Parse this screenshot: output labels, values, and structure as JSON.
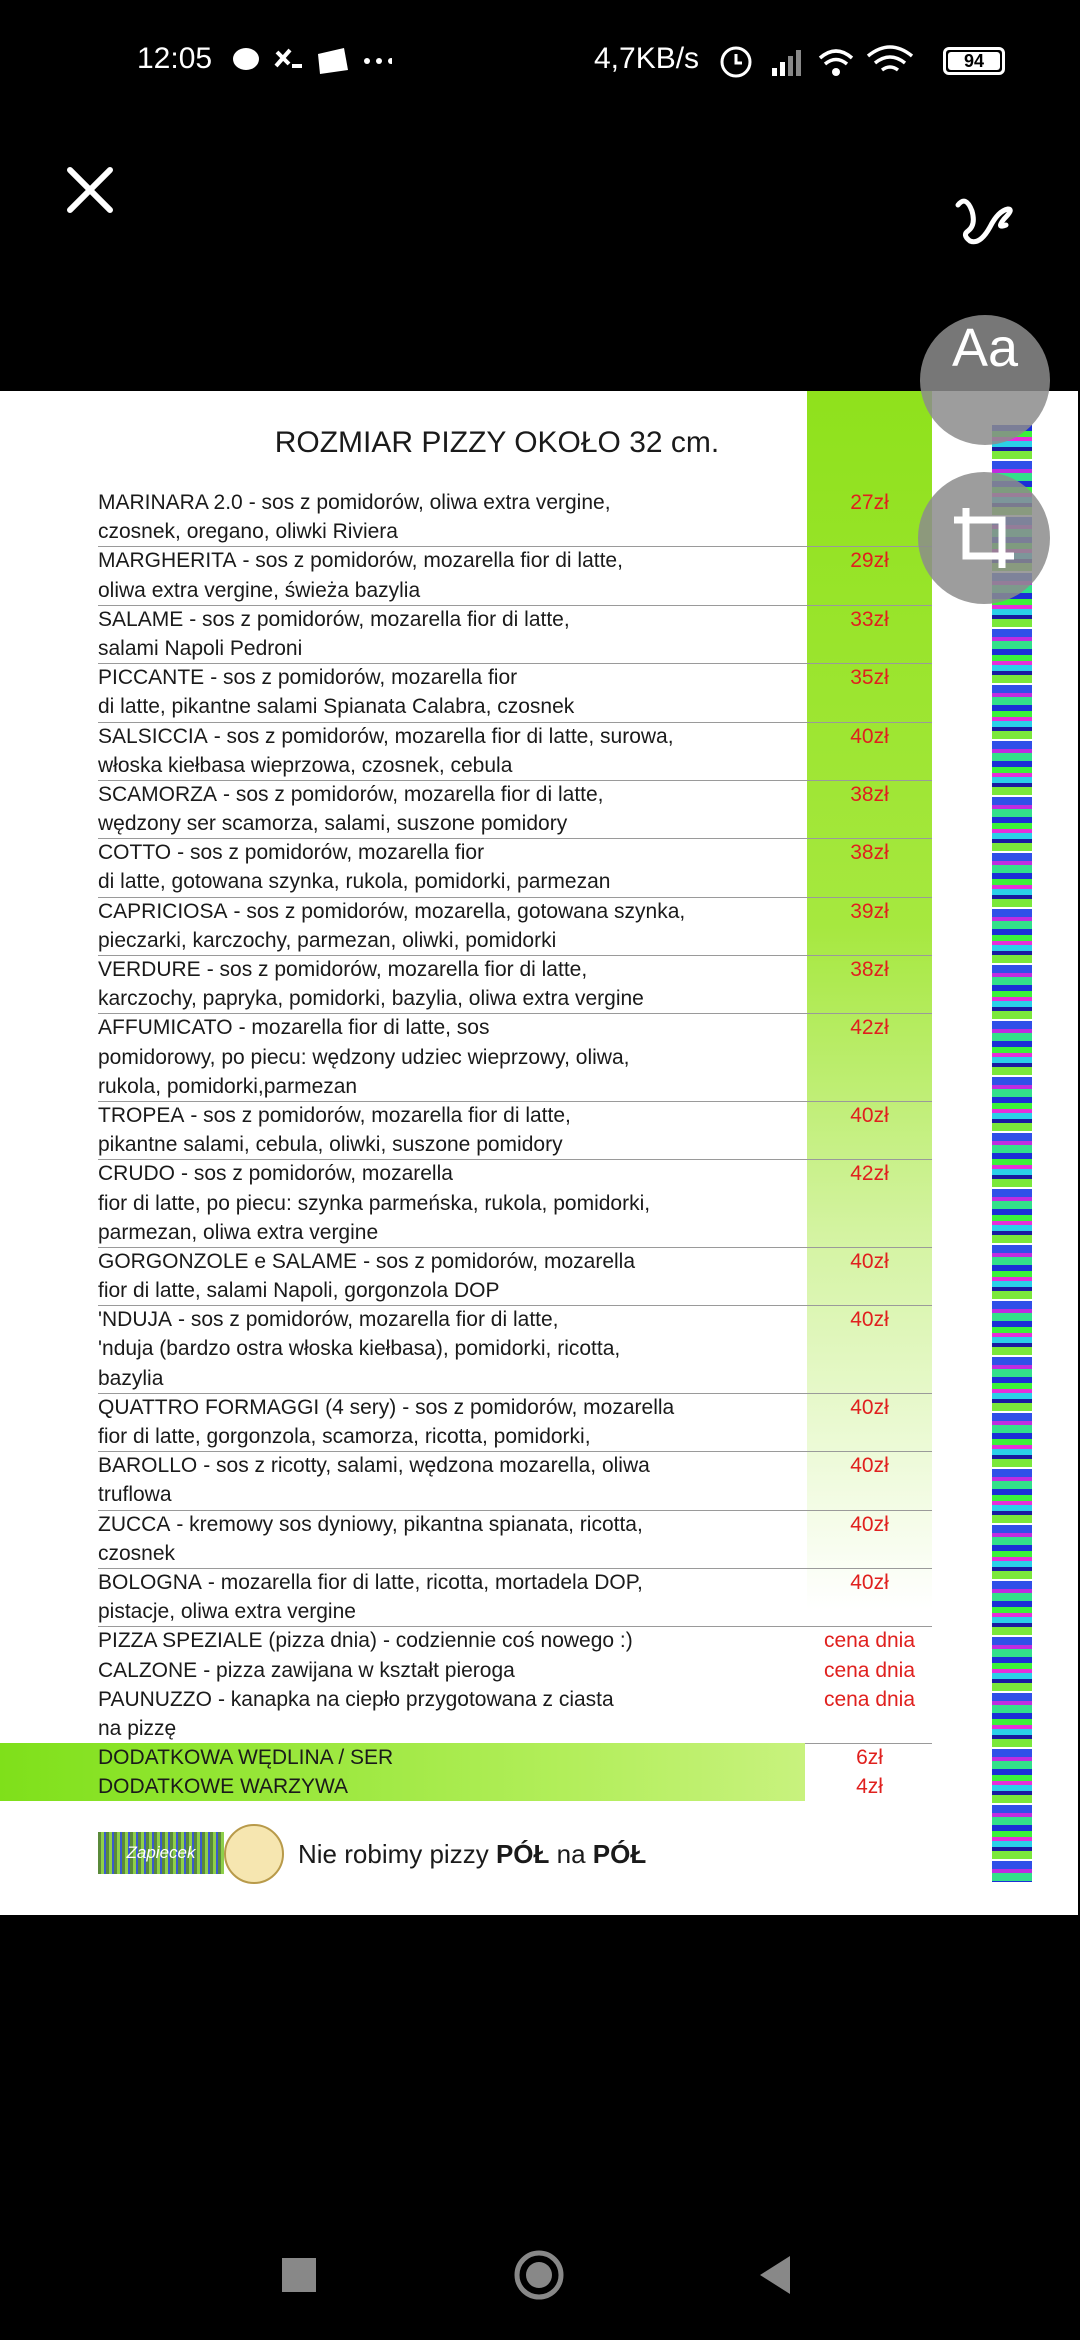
{
  "status_bar": {
    "time": "12:05",
    "network_speed": "4,7KB/s",
    "battery": "94"
  },
  "toolbar": {
    "text_button": "Aa"
  },
  "menu": {
    "title": "ROZMIAR PIZZY OKOŁO 32 cm.",
    "items": [
      {
        "name": "MARINARA 2.0",
        "lines": [
          "- sos z pomidorów, oliwa extra vergine,",
          "czosnek, oregano, oliwki Riviera"
        ],
        "price": "27zł"
      },
      {
        "name": "MARGHERITA",
        "lines": [
          "- sos z pomidorów, mozarella fior di latte,",
          "oliwa extra vergine, świeża bazylia"
        ],
        "price": "29zł"
      },
      {
        "name": "SALAME",
        "lines": [
          "- sos z pomidorów, mozarella fior di latte,",
          "salami Napoli Pedroni"
        ],
        "price": "33zł"
      },
      {
        "name": "PICCANTE",
        "lines": [
          "- sos z pomidorów, mozarella fior",
          "di latte, pikantne salami Spianata Calabra, czosnek"
        ],
        "price": "35zł"
      },
      {
        "name": "SALSICCIA",
        "lines": [
          "- sos z pomidorów, mozarella fior di latte, surowa,",
          "włoska kiełbasa wieprzowa, czosnek, cebula"
        ],
        "price": "40zł"
      },
      {
        "name": "SCAMORZA",
        "lines": [
          "- sos z pomidorów, mozarella fior di latte,",
          "wędzony ser scamorza, salami, suszone pomidory"
        ],
        "price": "38zł"
      },
      {
        "name": "COTTO",
        "lines": [
          "- sos z pomidorów, mozarella fior",
          "di latte, gotowana szynka, rukola, pomidorki, parmezan"
        ],
        "price": "38zł"
      },
      {
        "name": "CAPRICIOSA",
        "lines": [
          "- sos z pomidorów, mozarella, gotowana szynka,",
          "pieczarki, karczochy, parmezan, oliwki, pomidorki"
        ],
        "price": "39zł"
      },
      {
        "name": "VERDURE",
        "lines": [
          "- sos z pomidorów, mozarella fior di latte,",
          "karczochy, papryka, pomidorki, bazylia, oliwa extra vergine"
        ],
        "price": "38zł"
      },
      {
        "name": "AFFUMICATO",
        "lines": [
          "- mozarella fior di latte, sos",
          "pomidorowy, po piecu: wędzony udziec wieprzowy, oliwa,",
          "rukola, pomidorki,parmezan"
        ],
        "price": "42zł"
      },
      {
        "name": "TROPEA",
        "lines": [
          "- sos z pomidorów, mozarella fior di latte,",
          "pikantne salami, cebula, oliwki, suszone pomidory"
        ],
        "price": "40zł"
      },
      {
        "name": "CRUDO",
        "lines": [
          "- sos z pomidorów, mozarella",
          "fior di latte, po piecu: szynka parmeńska, rukola, pomidorki,",
          "parmezan, oliwa extra vergine"
        ],
        "price": "42zł"
      },
      {
        "name": "GORGONZOLE e SALAME",
        "lines": [
          "- sos z pomidorów, mozarella",
          "fior di latte, salami Napoli, gorgonzola DOP"
        ],
        "price": "40zł"
      },
      {
        "name": "'NDUJA",
        "lines": [
          "- sos z pomidorów, mozarella fior di latte,",
          "'nduja (bardzo ostra włoska kiełbasa), pomidorki, ricotta,",
          "bazylia"
        ],
        "price": "40zł"
      },
      {
        "name": "QUATTRO FORMAGGI (4 sery)",
        "lines": [
          "- sos z pomidorów, mozarella",
          "fior di latte, gorgonzola, scamorza, ricotta, pomidorki,"
        ],
        "price": "40zł"
      },
      {
        "name": "BAROLLO",
        "lines": [
          "- sos z ricotty, salami, wędzona mozarella, oliwa",
          "truflowa"
        ],
        "price": "40zł"
      },
      {
        "name": "ZUCCA",
        "lines": [
          "- kremowy sos dyniowy, pikantna spianata, ricotta,",
          "czosnek"
        ],
        "price": "40zł"
      },
      {
        "name": "BOLOGNA",
        "lines": [
          "- mozarella fior di latte, ricotta, mortadela DOP,",
          "pistacje, oliwa extra vergine"
        ],
        "price": "40zł"
      },
      {
        "name": "PIZZA SPEZIALE (pizza dnia)",
        "lines": [
          "- codziennie coś nowego :)"
        ],
        "price": "cena dnia"
      },
      {
        "name": "CALZONE",
        "lines": [
          "- pizza zawijana w kształt pieroga"
        ],
        "price": "cena dnia"
      },
      {
        "name": "PAUNUZZO",
        "lines": [
          "- kanapka na ciepło przygotowana z ciasta",
          "na pizzę"
        ],
        "price": "cena dnia"
      }
    ],
    "extras": [
      {
        "name": "DODATKOWA WĘDLINA / SER",
        "price": "6zł"
      },
      {
        "name": "DODATKOWE WARZYWA",
        "price": "4zł"
      }
    ],
    "footer": {
      "logo": "Zapiecek",
      "note_parts": [
        "Nie robimy pizzy ",
        "PÓŁ",
        " na ",
        "PÓŁ"
      ]
    }
  }
}
